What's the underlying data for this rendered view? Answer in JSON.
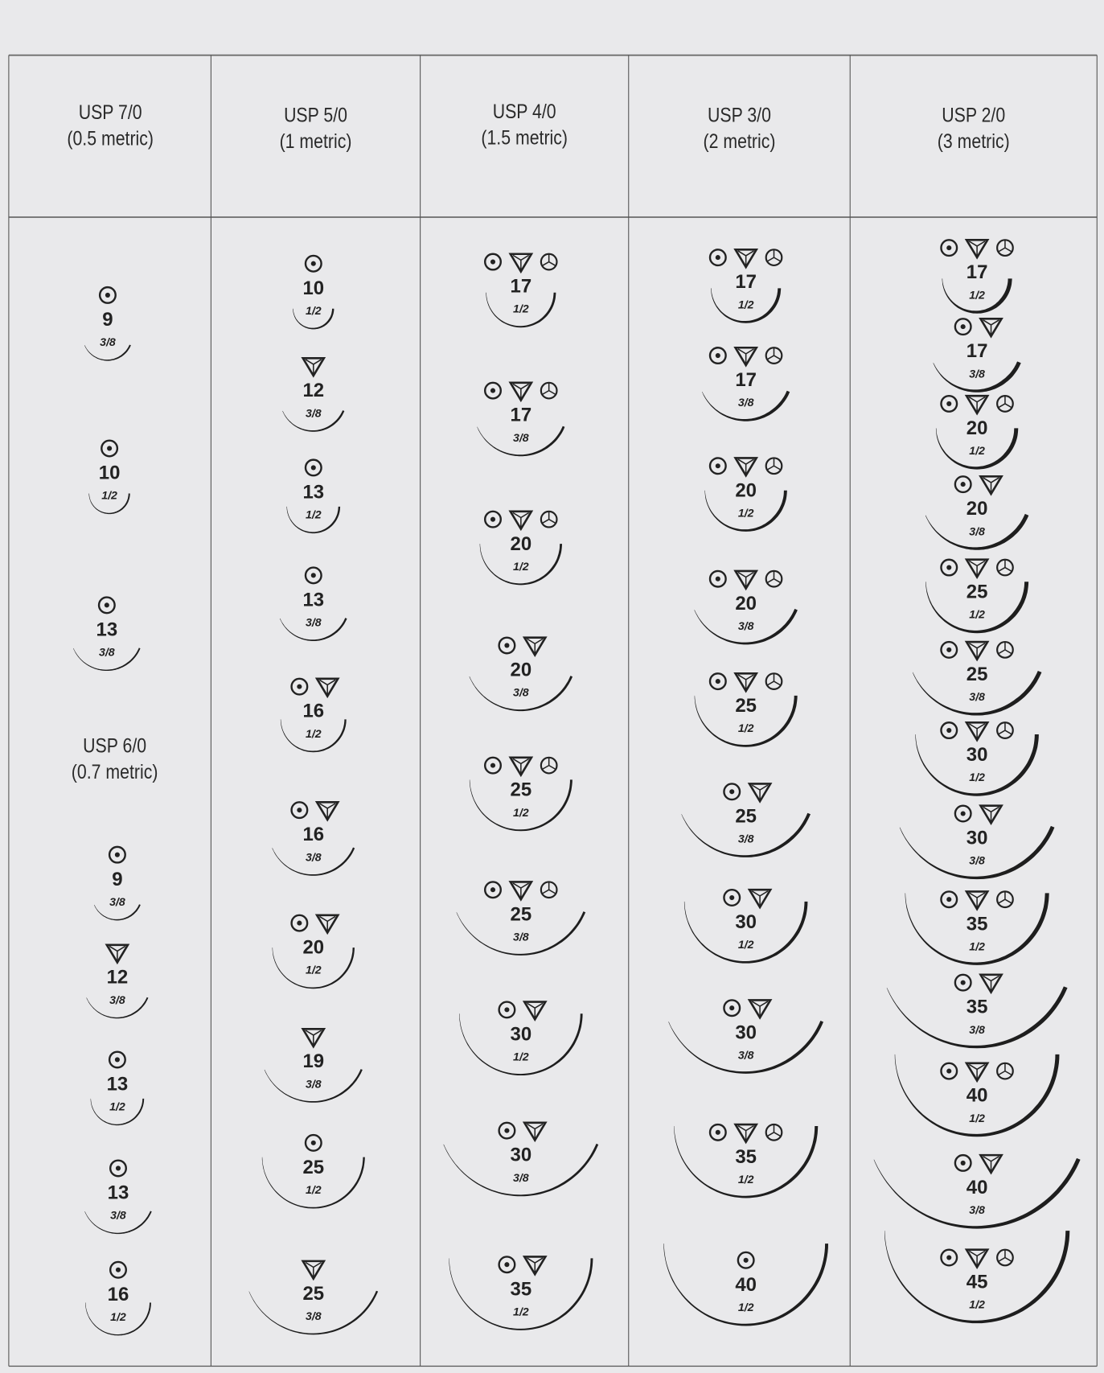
{
  "colors": {
    "background": "#e9e9eb",
    "grid_line": "#555555",
    "ink": "#222222"
  },
  "icon_legend_names": [
    "round-body-icon",
    "cutting-icon",
    "taper-cut-icon"
  ],
  "columns": [
    {
      "groups": [
        {
          "title": "USP 7/0",
          "subtitle": "(0.5 metric)",
          "needles": [
            {
              "points": [
                "round"
              ],
              "size": "9",
              "curvature": "3/8"
            },
            {
              "points": [
                "round"
              ],
              "size": "10",
              "curvature": "1/2"
            },
            {
              "points": [
                "round"
              ],
              "size": "13",
              "curvature": "3/8"
            }
          ]
        },
        {
          "title": "USP 6/0",
          "subtitle": "(0.7 metric)",
          "needles": [
            {
              "points": [
                "round"
              ],
              "size": "9",
              "curvature": "3/8"
            },
            {
              "points": [
                "cutting"
              ],
              "size": "12",
              "curvature": "3/8"
            },
            {
              "points": [
                "round"
              ],
              "size": "13",
              "curvature": "1/2"
            },
            {
              "points": [
                "round"
              ],
              "size": "13",
              "curvature": "3/8"
            },
            {
              "points": [
                "round"
              ],
              "size": "16",
              "curvature": "1/2"
            }
          ]
        }
      ]
    },
    {
      "groups": [
        {
          "title": "USP 5/0",
          "subtitle": "(1 metric)",
          "needles": [
            {
              "points": [
                "round"
              ],
              "size": "10",
              "curvature": "1/2"
            },
            {
              "points": [
                "cutting"
              ],
              "size": "12",
              "curvature": "3/8"
            },
            {
              "points": [
                "round"
              ],
              "size": "13",
              "curvature": "1/2"
            },
            {
              "points": [
                "round"
              ],
              "size": "13",
              "curvature": "3/8"
            },
            {
              "points": [
                "round",
                "cutting"
              ],
              "size": "16",
              "curvature": "1/2"
            },
            {
              "points": [
                "round",
                "cutting"
              ],
              "size": "16",
              "curvature": "3/8"
            },
            {
              "points": [
                "round",
                "cutting"
              ],
              "size": "20",
              "curvature": "1/2"
            },
            {
              "points": [
                "cutting"
              ],
              "size": "19",
              "curvature": "3/8"
            },
            {
              "points": [
                "round"
              ],
              "size": "25",
              "curvature": "1/2"
            },
            {
              "points": [
                "cutting"
              ],
              "size": "25",
              "curvature": "3/8"
            }
          ]
        }
      ]
    },
    {
      "groups": [
        {
          "title": "USP 4/0",
          "subtitle": "(1.5 metric)",
          "needles": [
            {
              "points": [
                "round",
                "cutting",
                "taper-cut"
              ],
              "size": "17",
              "curvature": "1/2"
            },
            {
              "points": [
                "round",
                "cutting",
                "taper-cut"
              ],
              "size": "17",
              "curvature": "3/8"
            },
            {
              "points": [
                "round",
                "cutting",
                "taper-cut"
              ],
              "size": "20",
              "curvature": "1/2"
            },
            {
              "points": [
                "round",
                "cutting"
              ],
              "size": "20",
              "curvature": "3/8"
            },
            {
              "points": [
                "round",
                "cutting",
                "taper-cut"
              ],
              "size": "25",
              "curvature": "1/2"
            },
            {
              "points": [
                "round",
                "cutting",
                "taper-cut"
              ],
              "size": "25",
              "curvature": "3/8"
            },
            {
              "points": [
                "round",
                "cutting"
              ],
              "size": "30",
              "curvature": "1/2"
            },
            {
              "points": [
                "round",
                "cutting"
              ],
              "size": "30",
              "curvature": "3/8"
            },
            {
              "points": [
                "round",
                "cutting"
              ],
              "size": "35",
              "curvature": "1/2"
            }
          ]
        }
      ]
    },
    {
      "groups": [
        {
          "title": "USP 3/0",
          "subtitle": "(2 metric)",
          "needles": [
            {
              "points": [
                "round",
                "cutting",
                "taper-cut"
              ],
              "size": "17",
              "curvature": "1/2"
            },
            {
              "points": [
                "round",
                "cutting",
                "taper-cut"
              ],
              "size": "17",
              "curvature": "3/8"
            },
            {
              "points": [
                "round",
                "cutting",
                "taper-cut"
              ],
              "size": "20",
              "curvature": "1/2"
            },
            {
              "points": [
                "round",
                "cutting",
                "taper-cut"
              ],
              "size": "20",
              "curvature": "3/8"
            },
            {
              "points": [
                "round",
                "cutting",
                "taper-cut"
              ],
              "size": "25",
              "curvature": "1/2"
            },
            {
              "points": [
                "round",
                "cutting"
              ],
              "size": "25",
              "curvature": "3/8"
            },
            {
              "points": [
                "round",
                "cutting"
              ],
              "size": "30",
              "curvature": "1/2"
            },
            {
              "points": [
                "round",
                "cutting"
              ],
              "size": "30",
              "curvature": "3/8"
            },
            {
              "points": [
                "round",
                "cutting",
                "taper-cut"
              ],
              "size": "35",
              "curvature": "1/2"
            },
            {
              "points": [
                "round"
              ],
              "size": "40",
              "curvature": "1/2"
            }
          ]
        }
      ]
    },
    {
      "groups": [
        {
          "title": "USP 2/0",
          "subtitle": "(3 metric)",
          "needles": [
            {
              "points": [
                "round",
                "cutting",
                "taper-cut"
              ],
              "size": "17",
              "curvature": "1/2"
            },
            {
              "points": [
                "round",
                "cutting"
              ],
              "size": "17",
              "curvature": "3/8"
            },
            {
              "points": [
                "round",
                "cutting",
                "taper-cut"
              ],
              "size": "20",
              "curvature": "1/2"
            },
            {
              "points": [
                "round",
                "cutting"
              ],
              "size": "20",
              "curvature": "3/8"
            },
            {
              "points": [
                "round",
                "cutting",
                "taper-cut"
              ],
              "size": "25",
              "curvature": "1/2"
            },
            {
              "points": [
                "round",
                "cutting",
                "taper-cut"
              ],
              "size": "25",
              "curvature": "3/8"
            },
            {
              "points": [
                "round",
                "cutting",
                "taper-cut"
              ],
              "size": "30",
              "curvature": "1/2"
            },
            {
              "points": [
                "round",
                "cutting"
              ],
              "size": "30",
              "curvature": "3/8"
            },
            {
              "points": [
                "round",
                "cutting",
                "taper-cut"
              ],
              "size": "35",
              "curvature": "1/2"
            },
            {
              "points": [
                "round",
                "cutting"
              ],
              "size": "35",
              "curvature": "3/8"
            },
            {
              "points": [
                "round",
                "cutting",
                "taper-cut"
              ],
              "size": "40",
              "curvature": "1/2"
            },
            {
              "points": [
                "round",
                "cutting"
              ],
              "size": "40",
              "curvature": "3/8"
            },
            {
              "points": [
                "round",
                "cutting",
                "taper-cut"
              ],
              "size": "45",
              "curvature": "1/2"
            }
          ]
        }
      ]
    }
  ]
}
